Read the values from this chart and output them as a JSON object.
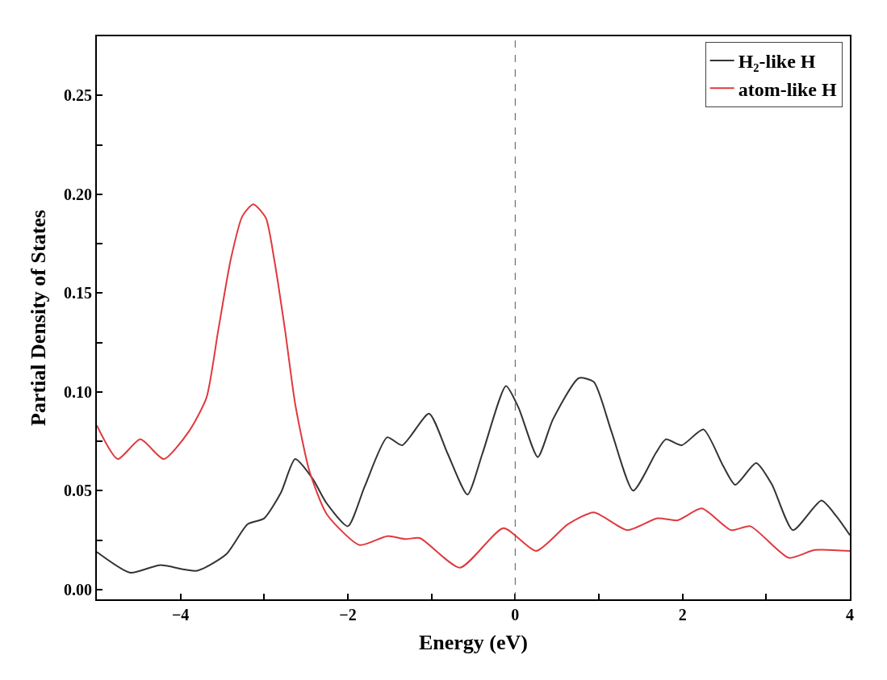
{
  "chart_data": {
    "type": "line",
    "xlabel": "Energy (eV)",
    "ylabel": "Partial Density of States",
    "xlim": [
      -5,
      4
    ],
    "xticks": [
      {
        "value": -5,
        "label": null
      },
      -4,
      {
        "value": -3,
        "label": null
      },
      -2,
      {
        "value": -1,
        "label": null
      },
      0,
      {
        "value": 1,
        "label": null
      },
      2,
      {
        "value": 3,
        "label": null
      },
      4
    ],
    "ylim": [
      -0.005,
      0.28
    ],
    "yticks": [
      {
        "value": 0,
        "label": "0.00"
      },
      {
        "value": 0.025,
        "label": null
      },
      {
        "value": 0.05,
        "label": "0.05"
      },
      {
        "value": 0.075,
        "label": null
      },
      {
        "value": 0.1,
        "label": "0.10"
      },
      {
        "value": 0.125,
        "label": null
      },
      {
        "value": 0.15,
        "label": "0.15"
      },
      {
        "value": 0.175,
        "label": null
      },
      {
        "value": 0.2,
        "label": "0.20"
      },
      {
        "value": 0.225,
        "label": null
      },
      {
        "value": 0.25,
        "label": "0.25"
      }
    ],
    "legend": "top right",
    "line_style": "solid",
    "marker": "none",
    "ref_lines": [
      {
        "axis": "x",
        "value": 0,
        "color": "#555555",
        "line_style": "dashed"
      }
    ],
    "series": [
      {
        "name": "H₂-like H",
        "color": "#333333",
        "x": [
          -5,
          -4.6,
          -4.25,
          -3.8,
          -3.45,
          -3.2,
          -3.0,
          -2.8,
          -2.63,
          -2.42,
          -2.26,
          -2.0,
          -1.8,
          -1.53,
          -1.35,
          -1.03,
          -0.81,
          -0.57,
          -0.39,
          -0.11,
          0.04,
          0.27,
          0.45,
          0.76,
          0.94,
          1.15,
          1.41,
          1.68,
          1.8,
          1.99,
          2.25,
          2.48,
          2.63,
          2.88,
          3.07,
          3.32,
          3.66,
          3.84,
          4.0
        ],
        "values": [
          0.019,
          0.0085,
          0.0123,
          0.0095,
          0.018,
          0.033,
          0.036,
          0.049,
          0.066,
          0.056,
          0.044,
          0.032,
          0.052,
          0.077,
          0.073,
          0.089,
          0.069,
          0.048,
          0.069,
          0.103,
          0.092,
          0.067,
          0.086,
          0.107,
          0.105,
          0.08,
          0.05,
          0.069,
          0.076,
          0.073,
          0.081,
          0.063,
          0.053,
          0.064,
          0.053,
          0.03,
          0.045,
          0.037,
          0.0275
        ]
      },
      {
        "name": "atom-like H",
        "color": "#e0393e",
        "x": [
          -5,
          -4.75,
          -4.48,
          -4.2,
          -3.9,
          -3.69,
          -3.55,
          -3.4,
          -3.26,
          -3.13,
          -2.98,
          -2.88,
          -2.75,
          -2.63,
          -2.46,
          -2.25,
          -1.86,
          -1.53,
          -1.31,
          -1.14,
          -0.66,
          -0.14,
          0.25,
          0.63,
          0.94,
          1.34,
          1.7,
          1.94,
          2.23,
          2.58,
          2.81,
          3.27,
          3.58,
          4.0
        ],
        "values": [
          0.083,
          0.066,
          0.076,
          0.066,
          0.08,
          0.097,
          0.131,
          0.167,
          0.189,
          0.195,
          0.188,
          0.167,
          0.131,
          0.094,
          0.06,
          0.038,
          0.0225,
          0.027,
          0.0255,
          0.026,
          0.011,
          0.031,
          0.0195,
          0.033,
          0.039,
          0.03,
          0.036,
          0.035,
          0.041,
          0.03,
          0.032,
          0.016,
          0.02,
          0.0195
        ]
      }
    ]
  }
}
